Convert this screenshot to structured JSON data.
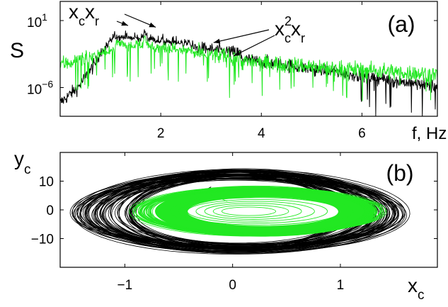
{
  "chart_data": [
    {
      "type": "line",
      "panel_label": "(a)",
      "ylabel": "S",
      "xlabel": "f, Hz",
      "yscale": "log",
      "xlim": [
        0,
        7.5
      ],
      "ylim": [
        1e-09,
        1000.0
      ],
      "xticks": [
        2,
        4,
        6
      ],
      "yticks": [
        {
          "value": 10,
          "base": "10",
          "exp": "1"
        },
        {
          "value": 1e-06,
          "base": "10",
          "exp": "−6"
        }
      ],
      "annotations": [
        {
          "text": "x",
          "sub": "c",
          "text2": "x",
          "sub2": "r",
          "sup": ""
        },
        {
          "text": "x",
          "sub": "c",
          "sup": "2",
          "text2": "x",
          "sub2": "r"
        }
      ],
      "arrow_targets": [
        {
          "x": 1.35,
          "y": 3
        },
        {
          "x": 1.9,
          "y": 2
        },
        {
          "x": 3.05,
          "y": 0.05
        },
        {
          "x": 3.45,
          "y": 0.002
        }
      ],
      "peaks": [
        {
          "f": 1.68,
          "amp": 20
        },
        {
          "f": 1.35,
          "amp": 1
        },
        {
          "f": 1.9,
          "amp": 1
        },
        {
          "f": 3.05,
          "amp": 0.5
        },
        {
          "f": 3.35,
          "amp": 1
        },
        {
          "f": 4.6,
          "amp": 0.001
        },
        {
          "f": 5.0,
          "amp": 0.001
        }
      ],
      "series": [
        {
          "color": "#000000"
        },
        {
          "color": "#22e822"
        }
      ]
    },
    {
      "type": "line",
      "panel_label": "(b)",
      "ylabel": "y",
      "ylabel_sub": "c",
      "xlabel": "x",
      "xlabel_sub": "c",
      "xlim": [
        -1.6,
        1.9
      ],
      "ylim": [
        -20,
        20
      ],
      "xticks": [
        -1,
        0,
        1
      ],
      "xticklabels": [
        "−1",
        "0",
        "1"
      ],
      "yticks": [
        10,
        0,
        -10
      ],
      "yticklabels": [
        "10",
        "0",
        "−10"
      ],
      "series": [
        {
          "color": "#000000",
          "x_range": [
            -1.45,
            1.62
          ],
          "y_range": [
            -16,
            14
          ]
        },
        {
          "color": "#22e822",
          "x_range": [
            -0.75,
            1.35
          ],
          "y_range": [
            -9,
            8
          ]
        }
      ]
    }
  ]
}
